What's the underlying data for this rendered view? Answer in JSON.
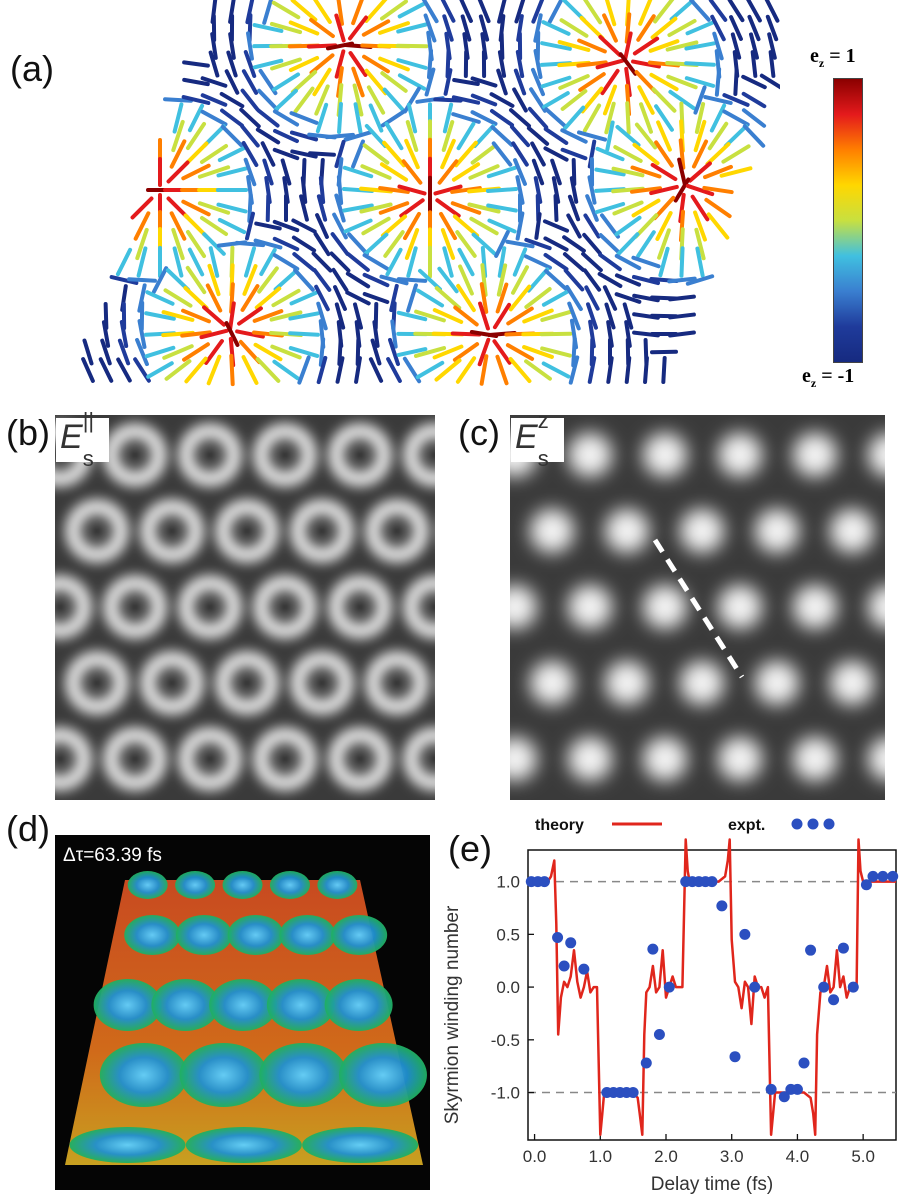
{
  "labels": {
    "a": "(a)",
    "b": "(b)",
    "c": "(c)",
    "d": "(d)",
    "e": "(e)"
  },
  "colorbar": {
    "top": "e",
    "top_sub": "z",
    "top_val": "= 1",
    "bottom": "e",
    "bottom_sub": "z",
    "bottom_val": "= -1",
    "colors": [
      "#8b0000",
      "#e41a1c",
      "#ff7f00",
      "#ffd700",
      "#c8e040",
      "#40c0e0",
      "#3a7fd0",
      "#1f3b9b",
      "#162a80"
    ]
  },
  "panel_b": {
    "symbol": "E",
    "sup": "||",
    "sub": "s"
  },
  "panel_c": {
    "symbol": "E",
    "sup": "z",
    "sub": "s"
  },
  "panel_d": {
    "caption": "Δτ=63.39 fs"
  },
  "chart_data": {
    "type": "line",
    "xlabel": "Delay time (fs)",
    "ylabel": "Skyrmion winding number",
    "xlim": [
      -0.1,
      5.5
    ],
    "ylim": [
      -1.45,
      1.3
    ],
    "xticks": [
      "0.0",
      "1.0",
      "2.0",
      "3.0",
      "4.0",
      "5.0"
    ],
    "xtick_values": [
      0,
      1,
      2,
      3,
      4,
      5
    ],
    "yticks": [
      "1.0",
      "0.5",
      "0.0",
      "-0.5",
      "-1.0"
    ],
    "ytick_values": [
      1,
      0.5,
      0,
      -0.5,
      -1
    ],
    "reference_lines": [
      1.0,
      -1.0
    ],
    "legend": {
      "theory": "theory",
      "expt": "expt."
    },
    "series": [
      {
        "name": "theory",
        "color": "#e0261c",
        "x": [
          -0.1,
          0.2,
          0.25,
          0.3,
          0.33,
          0.36,
          0.4,
          0.45,
          0.5,
          0.55,
          0.6,
          0.65,
          0.7,
          0.75,
          0.8,
          0.85,
          0.9,
          0.95,
          1.0,
          1.03,
          1.06,
          1.1,
          1.2,
          1.3,
          1.5,
          1.57,
          1.6,
          1.64,
          1.67,
          1.7,
          1.75,
          1.8,
          1.85,
          1.9,
          1.95,
          2.0,
          2.05,
          2.1,
          2.15,
          2.2,
          2.25,
          2.3,
          2.33,
          2.36,
          2.4,
          2.6,
          2.8,
          2.9,
          2.94,
          2.97,
          3.0,
          3.05,
          3.1,
          3.15,
          3.2,
          3.25,
          3.3,
          3.35,
          3.4,
          3.45,
          3.5,
          3.55,
          3.6,
          3.63,
          3.66,
          3.7,
          3.9,
          4.1,
          4.2,
          4.24,
          4.27,
          4.3,
          4.35,
          4.4,
          4.45,
          4.5,
          4.55,
          4.6,
          4.65,
          4.7,
          4.75,
          4.8,
          4.85,
          4.9,
          4.93,
          4.96,
          5.0,
          5.5
        ],
        "y": [
          1.0,
          1.0,
          1.05,
          1.2,
          0.6,
          -0.45,
          -0.1,
          0.05,
          0.0,
          0.1,
          0.35,
          0.05,
          -0.1,
          0.0,
          0.15,
          -0.05,
          0.0,
          0.0,
          -1.4,
          -1.2,
          -1.0,
          -1.0,
          -1.0,
          -1.0,
          -1.0,
          -1.05,
          -1.2,
          -1.4,
          -0.45,
          -0.05,
          0.0,
          0.2,
          -0.05,
          0.0,
          0.35,
          -0.1,
          0.0,
          0.1,
          0.0,
          0.0,
          0.0,
          1.4,
          1.1,
          1.0,
          1.0,
          1.0,
          1.0,
          1.05,
          1.2,
          1.4,
          0.45,
          0.05,
          0.0,
          -0.2,
          0.05,
          0.0,
          -0.35,
          0.1,
          0.0,
          0.0,
          -0.1,
          0.0,
          -1.4,
          -1.2,
          -1.0,
          -1.0,
          -1.0,
          -1.0,
          -1.05,
          -1.2,
          -1.4,
          -0.45,
          -0.05,
          0.0,
          0.2,
          -0.05,
          0.0,
          0.35,
          0.0,
          0.1,
          -0.1,
          0.0,
          0.0,
          0.0,
          1.4,
          1.1,
          1.0,
          1.0
        ]
      },
      {
        "name": "expt.",
        "color": "#2b4fc0",
        "x": [
          -0.05,
          0.05,
          0.15,
          0.35,
          0.45,
          0.55,
          0.75,
          1.1,
          1.2,
          1.3,
          1.4,
          1.5,
          1.7,
          1.8,
          1.9,
          2.05,
          2.3,
          2.4,
          2.5,
          2.6,
          2.7,
          2.85,
          3.05,
          3.2,
          3.35,
          3.6,
          3.8,
          3.9,
          4.0,
          4.1,
          4.2,
          4.4,
          4.55,
          4.7,
          4.85,
          5.05,
          5.15,
          5.3,
          5.45
        ],
        "y": [
          1.0,
          1.0,
          1.0,
          0.47,
          0.2,
          0.42,
          0.17,
          -1.0,
          -1.0,
          -1.0,
          -1.0,
          -1.0,
          -0.72,
          0.36,
          -0.45,
          0.0,
          1.0,
          1.0,
          1.0,
          1.0,
          1.0,
          0.77,
          -0.66,
          0.5,
          0.0,
          -0.97,
          -1.04,
          -0.97,
          -0.97,
          -0.72,
          0.35,
          0.0,
          -0.12,
          0.37,
          0.0,
          0.97,
          1.05,
          1.05,
          1.05
        ]
      }
    ]
  }
}
